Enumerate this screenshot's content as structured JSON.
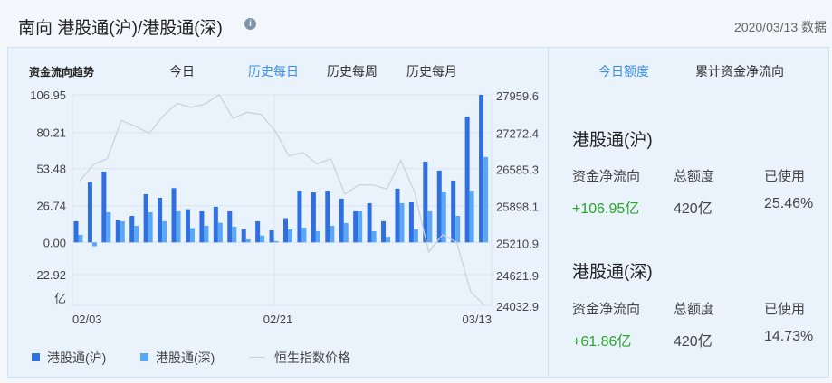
{
  "header": {
    "title": "南向 港股通(沪)/港股通(深)",
    "info_icon": "info-icon",
    "date": "2020/03/13 数据"
  },
  "chart_tabs": {
    "label": "资金流向趋势",
    "items": [
      {
        "label": "今日",
        "active": false
      },
      {
        "label": "历史每日",
        "active": true
      },
      {
        "label": "历史每周",
        "active": false
      },
      {
        "label": "历史每月",
        "active": false
      }
    ]
  },
  "right_tabs": [
    {
      "label": "今日额度",
      "active": true
    },
    {
      "label": "累计资金净流向",
      "active": false
    }
  ],
  "quota": [
    {
      "name": "港股通(沪)",
      "headers": [
        "资金净流向",
        "总额度",
        "已使用"
      ],
      "net_flow": "+106.95亿",
      "total": "420亿",
      "used": "25.46%"
    },
    {
      "name": "港股通(深)",
      "headers": [
        "资金净流向",
        "总额度",
        "已使用"
      ],
      "net_flow": "+61.86亿",
      "total": "420亿",
      "used": "14.73%"
    }
  ],
  "colors": {
    "accent": "#3a8ee6",
    "hk_sh": "#2f6fe0",
    "hk_sz": "#5aa8f5",
    "index_line": "#c8d0da",
    "positive": "#2aa52a"
  },
  "chart_data": {
    "type": "bar+line",
    "left_axis": {
      "ticks": [
        "106.95",
        "80.21",
        "53.48",
        "26.74",
        "0.00",
        "-22.92"
      ],
      "unit": "亿",
      "range": [
        -22.92,
        106.95
      ]
    },
    "right_axis": {
      "ticks": [
        "27959.6",
        "27272.4",
        "26585.3",
        "25898.1",
        "25210.9",
        "24621.9",
        "24032.9"
      ],
      "range": [
        24032.9,
        27959.6
      ]
    },
    "x_tick_labels": [
      "02/03",
      "02/21",
      "03/13"
    ],
    "series": [
      {
        "name": "港股通(沪)",
        "type": "bar",
        "values": [
          15.3,
          43.7,
          51.3,
          15.9,
          19.2,
          34.9,
          32.3,
          39.3,
          24.0,
          22.5,
          25.8,
          22.5,
          9.4,
          15.3,
          8.7,
          17.5,
          37.5,
          36.2,
          37.5,
          31.7,
          22.5,
          28.4,
          15.3,
          38.9,
          29.0,
          58.5,
          52.0,
          44.8,
          91.2,
          106.95
        ]
      },
      {
        "name": "港股通(深)",
        "type": "bar",
        "values": [
          5.5,
          -2.8,
          21.8,
          15.3,
          12.0,
          21.8,
          15.3,
          22.5,
          10.3,
          12.0,
          14.2,
          11.4,
          2.2,
          5.0,
          0.9,
          9.4,
          10.7,
          8.1,
          12.0,
          14.0,
          22.5,
          8.1,
          4.1,
          28.4,
          9.4,
          22.5,
          36.9,
          19.2,
          37.5,
          61.86
        ]
      },
      {
        "name": "恒生指数价格",
        "type": "line",
        "axis": "right",
        "values": [
          26344,
          26658,
          26770,
          27483,
          27371,
          27242,
          27567,
          27803,
          27724,
          27792,
          27960,
          27522,
          27634,
          27595,
          27287,
          26821,
          26883,
          26670,
          26765,
          26109,
          26277,
          26277,
          26204,
          26737,
          26137,
          25031,
          25351,
          25211,
          24285,
          24033
        ]
      }
    ],
    "legend": "bottom-left",
    "grid": true
  }
}
